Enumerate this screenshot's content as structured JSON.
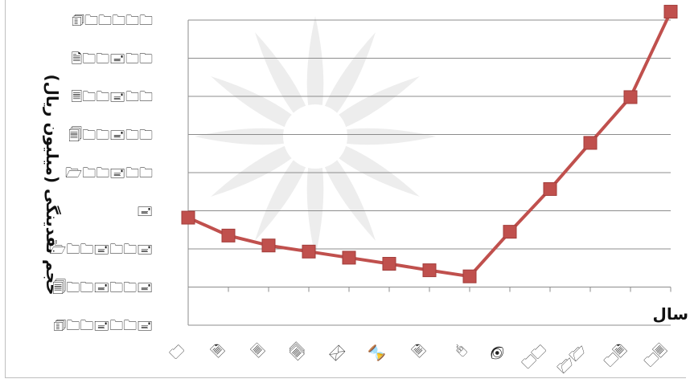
{
  "chart_data": {
    "type": "line",
    "xlabel": "سال",
    "ylabel": "(میلیون ریال) حجم نقدینگی",
    "categories": [
      "🗀",
      "🗎",
      "🗏",
      "🗐",
      "🖂",
      "⌛",
      "🖹",
      "🖰",
      "👁",
      "🗀🗀",
      "🗁🗁",
      "🗀🗎",
      "🗀🗏"
    ],
    "y_ticks": [
      "🗊🗀🗀🗀🗀🗀",
      "🗎🗀🗀🖃🗀🗀",
      "🗏🗀🗀🖃🗀🗀",
      "🗐🗀🗀🖃🗀🗀",
      "🗁🗀🗀🖃🗀🗀",
      "🖃",
      "🗁🗀🗀🖃🗀🗀🖃",
      "🗐🗀🗀🖃🗀🗀🖃",
      "🗊🗀🗀🖃🗀🗀🖃"
    ],
    "y_tick_values": [
      7,
      6,
      5,
      4,
      3,
      2,
      1,
      0,
      -1
    ],
    "ylim": [
      -1,
      7
    ],
    "series": [
      {
        "values": [
          1.82,
          1.35,
          1.09,
          0.93,
          0.77,
          0.61,
          0.44,
          0.28,
          1.45,
          2.57,
          3.78,
          4.98,
          7.22
        ],
        "color": "#c0504d"
      }
    ],
    "grid": true,
    "watermark": "decorative-rosette"
  }
}
